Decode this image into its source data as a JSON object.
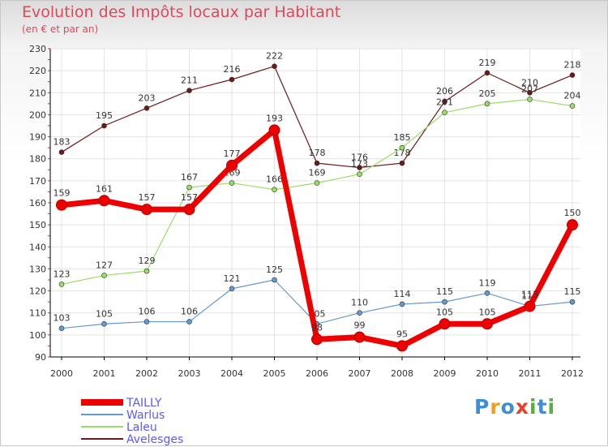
{
  "title": "Evolution des Impôts locaux par Habitant",
  "subtitle": "(en € et par an)",
  "logo": {
    "text": "Proxiti",
    "letters": [
      "P",
      "r",
      "o",
      "x",
      "i",
      "t",
      "i"
    ],
    "colors": [
      "#3a8fd8",
      "#f0a020",
      "#3a8fd8",
      "#e8402a",
      "#56b03c",
      "#3a8fd8",
      "#56b03c"
    ]
  },
  "colors": {
    "grid": "#e3e3e3",
    "axis": "#000000",
    "label": "#333333",
    "tick_red": "#dd3333"
  },
  "chart_data": {
    "type": "line",
    "title": "Evolution des Impôts locaux par Habitant",
    "subtitle": "(en € et par an)",
    "xlabel": "",
    "ylabel": "",
    "ylim": [
      90,
      230
    ],
    "yticks": [
      90,
      100,
      110,
      120,
      130,
      140,
      150,
      160,
      170,
      180,
      190,
      200,
      210,
      220,
      230
    ],
    "grid": true,
    "legend_position": "bottom-left",
    "categories": [
      "2000",
      "2001",
      "2002",
      "2003",
      "2004",
      "2005",
      "2006",
      "2007",
      "2008",
      "2009",
      "2010",
      "2011",
      "2012"
    ],
    "series": [
      {
        "name": "Avelesges",
        "color": "#6e1818",
        "values": [
          183,
          195,
          203,
          211,
          216,
          222,
          178,
          176,
          178,
          206,
          219,
          210,
          218
        ],
        "labels": [
          "183",
          "195",
          "203",
          "211",
          "216",
          "222",
          "178",
          "176",
          "178",
          "206",
          "219",
          "210",
          "218"
        ]
      },
      {
        "name": "Laleu",
        "color": "#99dd66",
        "values": [
          123,
          127,
          129,
          167,
          169,
          166,
          169,
          173,
          185,
          201,
          205,
          207,
          204
        ],
        "labels": [
          "123",
          "127",
          "129",
          "167",
          "169",
          "166",
          "169",
          "173",
          "185",
          "201",
          "205",
          "207",
          "204"
        ]
      },
      {
        "name": "Warlus",
        "color": "#6699cc",
        "values": [
          103,
          105,
          106,
          106,
          121,
          125,
          105,
          110,
          114,
          115,
          119,
          113,
          115
        ],
        "labels": [
          "103",
          "105",
          "106",
          "106",
          "121",
          "125",
          "105",
          "110",
          "114",
          "115",
          "119",
          "113",
          "115"
        ]
      },
      {
        "name": "TAILLY",
        "color": "#ee0000",
        "values": [
          159,
          161,
          157,
          157,
          177,
          193,
          98,
          99,
          95,
          105,
          105,
          113,
          150
        ],
        "labels": [
          "159",
          "161",
          "157",
          "157",
          "177",
          "193",
          "98",
          "99",
          "95",
          "105",
          "105",
          "113",
          "150"
        ]
      }
    ],
    "legend": [
      "TAILLY",
      "Warlus",
      "Laleu",
      "Avelesges"
    ]
  }
}
